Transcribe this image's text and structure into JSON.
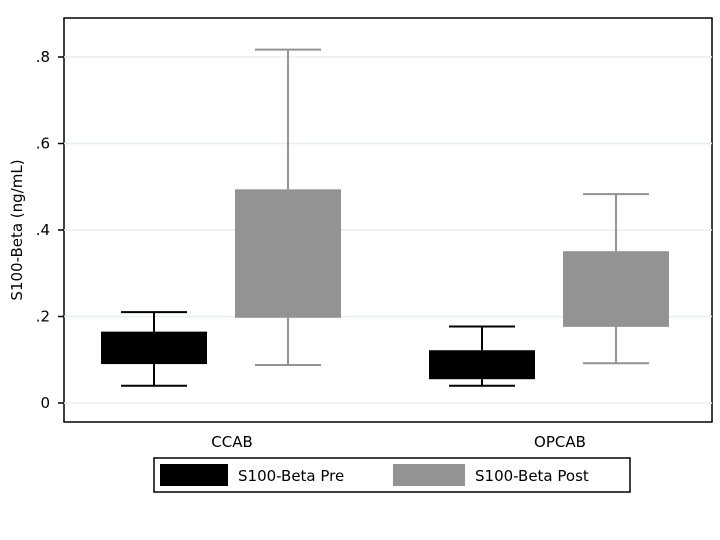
{
  "chart_data": {
    "type": "box",
    "ylabel": "S100-Beta (ng/mL)",
    "xlabel": "",
    "ylim": [
      0,
      0.85
    ],
    "yticks": [
      0,
      0.2,
      0.4,
      0.6,
      0.8
    ],
    "ytick_labels": [
      "0",
      ".2",
      ".4",
      ".6",
      ".8"
    ],
    "grid": true,
    "legend_position": "bottom",
    "categories": [
      "CCAB",
      "OPCAB"
    ],
    "series": [
      {
        "name": "S100-Beta Pre",
        "color": "#000000",
        "boxes": [
          {
            "whisker_low": 0.04,
            "q1": 0.09,
            "q3": 0.165,
            "whisker_high": 0.21
          },
          {
            "whisker_low": 0.04,
            "q1": 0.055,
            "q3": 0.122,
            "whisker_high": 0.177
          }
        ]
      },
      {
        "name": "S100-Beta Post",
        "color": "#939393",
        "boxes": [
          {
            "whisker_low": 0.088,
            "q1": 0.197,
            "q3": 0.494,
            "whisker_high": 0.817
          },
          {
            "whisker_low": 0.092,
            "q1": 0.176,
            "q3": 0.351,
            "whisker_high": 0.483
          }
        ]
      }
    ]
  }
}
